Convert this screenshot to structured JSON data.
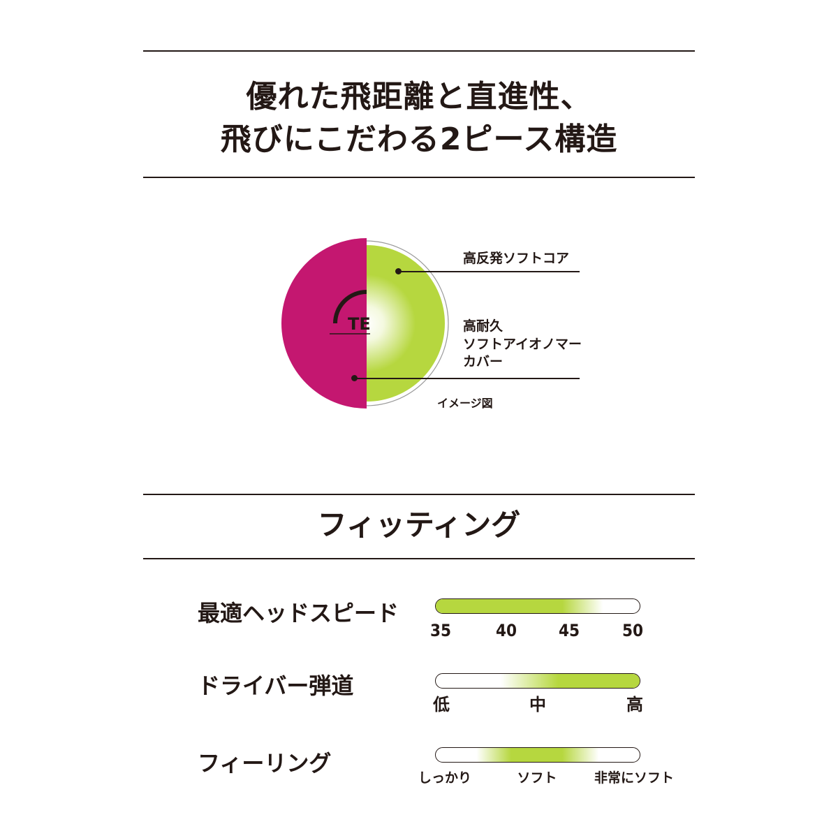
{
  "headline": {
    "line1": "優れた飛距離と直進性、",
    "line2": "飛びにこだわる2ピース構造"
  },
  "diagram": {
    "logo_text": "TE",
    "core_label": "高反発ソフトコア",
    "cover_label": "高耐久\nソフトアイオノマー\nカバー",
    "caption": "イメージ図",
    "colors": {
      "magenta": "#c41770",
      "lime": "#b6d73f",
      "rule": "#231815"
    }
  },
  "fitting": {
    "title": "フィッティング",
    "rows": [
      {
        "label": "最適ヘッドスピード",
        "ticks": [
          "35",
          "40",
          "45",
          "50"
        ],
        "fill": {
          "from": 0.0,
          "solid_to": 0.62,
          "fade_to": 0.82
        }
      },
      {
        "label": "ドライバー弾道",
        "ticks": [
          "低",
          "中",
          "高"
        ],
        "fill": {
          "fade_from": 0.32,
          "solid_from": 0.6,
          "to": 1.0
        }
      },
      {
        "label": "フィーリング",
        "ticks": [
          "しっかり",
          "ソフト",
          "非常にソフト"
        ],
        "fill": {
          "fade_from": 0.2,
          "solid_from": 0.37,
          "solid_to": 0.62,
          "fade_to": 0.8
        }
      }
    ],
    "accent": "#b6d73f"
  }
}
